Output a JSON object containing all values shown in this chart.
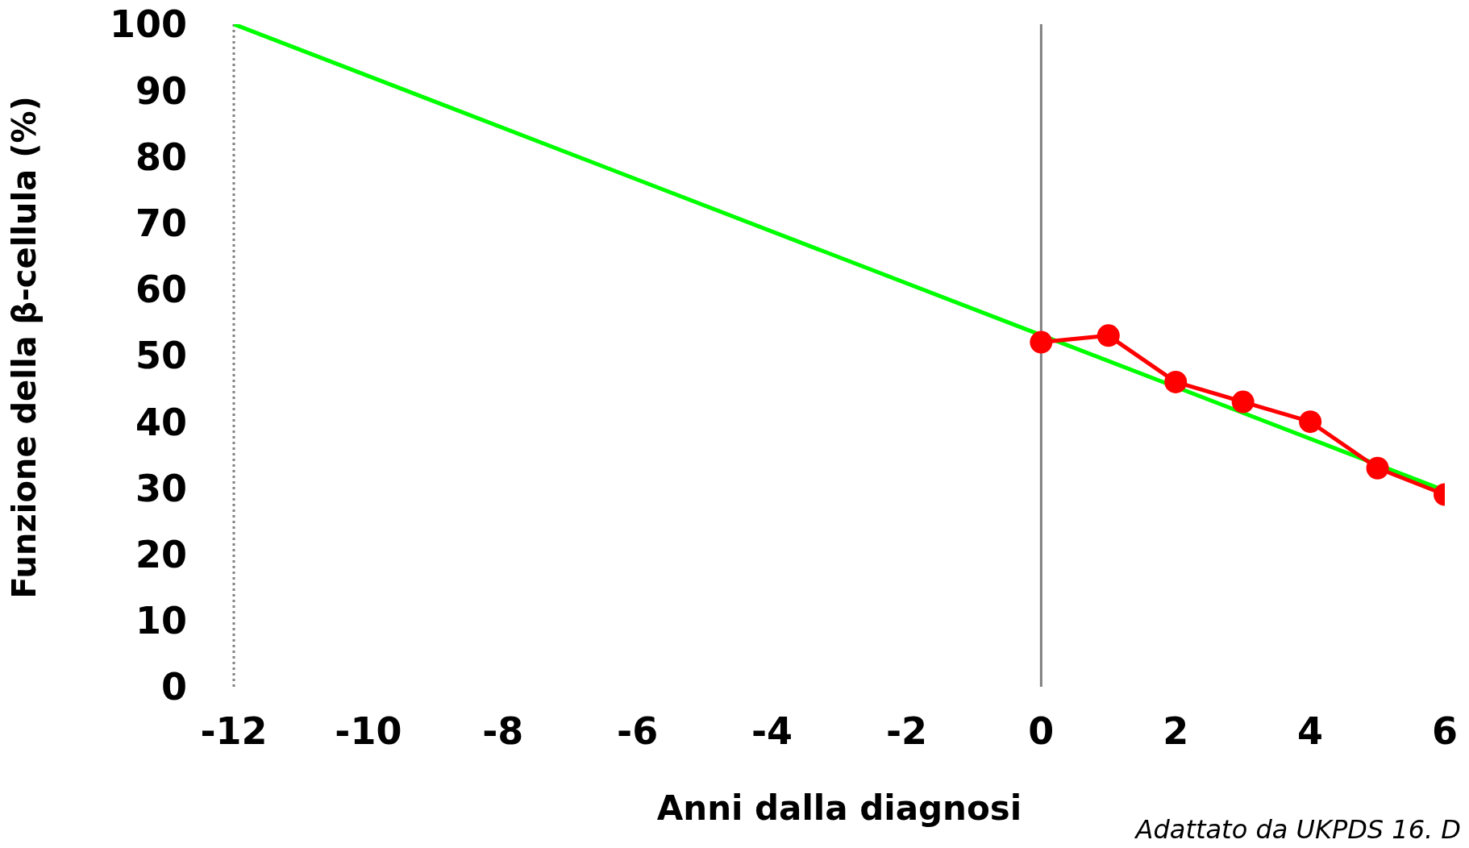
{
  "chart_data": {
    "type": "line",
    "ylabel": "Funzione della β-cellula (%)",
    "xlabel": "Anni dalla diagnosi",
    "annotations": [
      "Adattato da UKPDS 16. D"
    ],
    "series": [
      {
        "color": "#00ff00",
        "x": [
          -12,
          5.9
        ],
        "values": [
          100,
          30
        ],
        "marker": "none"
      },
      {
        "color": "#ff0000",
        "x": [
          0,
          1,
          2,
          3,
          4,
          5,
          6
        ],
        "values": [
          52,
          53,
          46,
          43,
          40,
          33,
          29
        ],
        "marker": "circle"
      }
    ],
    "xlim": [
      -12,
      6
    ],
    "xticks": [
      -12,
      -10,
      -8,
      -6,
      -4,
      -2,
      0,
      2,
      4,
      6
    ],
    "ylim": [
      0,
      100
    ],
    "yticks": [
      0,
      10,
      20,
      30,
      40,
      50,
      60,
      70,
      80,
      90,
      100
    ],
    "ref_lines": [
      {
        "axis": "x",
        "value": -12,
        "color": "#808080",
        "line_style": "dotted"
      },
      {
        "axis": "x",
        "value": 0,
        "color": "#808080",
        "line_style": "solid"
      }
    ],
    "grid": false,
    "legend": false
  }
}
